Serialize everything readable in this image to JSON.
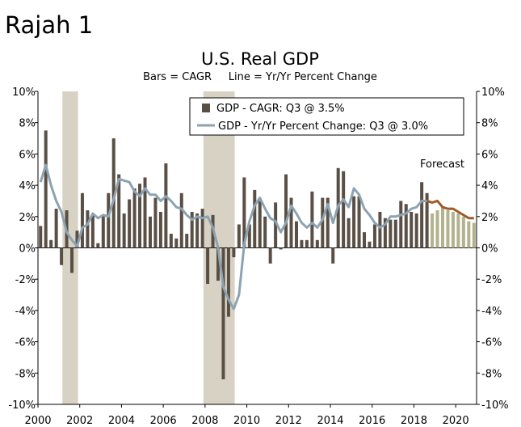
{
  "figure_label": "Rajah 1",
  "chart_data": {
    "type": "bar",
    "title": "U.S. Real GDP",
    "subtitle": "Bars = CAGR     Line = Yr/Yr Percent Change",
    "x_ticks": [
      "2000",
      "2002",
      "2004",
      "2006",
      "2008",
      "2010",
      "2012",
      "2014",
      "2016",
      "2018",
      "2020"
    ],
    "y_ticks": [
      "10%",
      "8%",
      "6%",
      "4%",
      "2%",
      "0%",
      "-2%",
      "-4%",
      "-6%",
      "-8%",
      "-10%"
    ],
    "ylim": [
      -10,
      10
    ],
    "xlim": [
      2000,
      2021
    ],
    "legend_position": "top-right",
    "annotation": "Forecast",
    "recessions": [
      [
        2001.17,
        2001.92
      ],
      [
        2007.92,
        2009.42
      ]
    ],
    "colors": {
      "bars": "#5a4f45",
      "forecast_bars": "#b3b28e",
      "line": "#8da3b2",
      "forecast_line": "#9c5c2a",
      "recession": "#d8d2c4"
    },
    "series": [
      {
        "name": "GDP - CAGR: Q3 @ 3.5%",
        "kind": "bar",
        "x": [
          2000.0,
          2000.25,
          2000.5,
          2000.75,
          2001.0,
          2001.25,
          2001.5,
          2001.75,
          2002.0,
          2002.25,
          2002.5,
          2002.75,
          2003.0,
          2003.25,
          2003.5,
          2003.75,
          2004.0,
          2004.25,
          2004.5,
          2004.75,
          2005.0,
          2005.25,
          2005.5,
          2005.75,
          2006.0,
          2006.25,
          2006.5,
          2006.75,
          2007.0,
          2007.25,
          2007.5,
          2007.75,
          2008.0,
          2008.25,
          2008.5,
          2008.75,
          2009.0,
          2009.25,
          2009.5,
          2009.75,
          2010.0,
          2010.25,
          2010.5,
          2010.75,
          2011.0,
          2011.25,
          2011.5,
          2011.75,
          2012.0,
          2012.25,
          2012.5,
          2012.75,
          2013.0,
          2013.25,
          2013.5,
          2013.75,
          2014.0,
          2014.25,
          2014.5,
          2014.75,
          2015.0,
          2015.25,
          2015.5,
          2015.75,
          2016.0,
          2016.25,
          2016.5,
          2016.75,
          2017.0,
          2017.25,
          2017.5,
          2017.75,
          2018.0,
          2018.25,
          2018.5
        ],
        "values": [
          1.4,
          7.5,
          0.5,
          2.5,
          -1.1,
          2.4,
          -1.6,
          1.1,
          3.5,
          2.4,
          2.1,
          0.3,
          2.1,
          3.5,
          7.0,
          4.7,
          2.2,
          3.1,
          3.8,
          4.1,
          4.5,
          2.0,
          3.2,
          2.3,
          5.4,
          0.9,
          0.6,
          3.5,
          0.9,
          2.3,
          2.2,
          2.5,
          -2.3,
          2.1,
          -2.1,
          -8.4,
          -4.4,
          -0.6,
          1.5,
          4.5,
          1.5,
          3.7,
          3.0,
          2.0,
          -1.0,
          2.9,
          -0.1,
          4.7,
          3.2,
          1.7,
          0.5,
          0.5,
          3.6,
          0.5,
          3.2,
          3.2,
          -1.0,
          5.1,
          4.9,
          1.9,
          3.3,
          3.3,
          1.0,
          0.4,
          1.5,
          2.3,
          1.9,
          1.8,
          1.8,
          3.0,
          2.8,
          2.3,
          2.2,
          4.2,
          3.5
        ]
      },
      {
        "name": "GDP - Yr/Yr Percent Change: Q3 @ 3.0%",
        "kind": "line",
        "x": [
          2000.0,
          2000.25,
          2000.5,
          2000.75,
          2001.0,
          2001.25,
          2001.5,
          2001.75,
          2002.0,
          2002.25,
          2002.5,
          2002.75,
          2003.0,
          2003.25,
          2003.5,
          2003.75,
          2004.0,
          2004.25,
          2004.5,
          2004.75,
          2005.0,
          2005.25,
          2005.5,
          2005.75,
          2006.0,
          2006.25,
          2006.5,
          2006.75,
          2007.0,
          2007.25,
          2007.5,
          2007.75,
          2008.0,
          2008.25,
          2008.5,
          2008.75,
          2009.0,
          2009.25,
          2009.5,
          2009.75,
          2010.0,
          2010.25,
          2010.5,
          2010.75,
          2011.0,
          2011.25,
          2011.5,
          2011.75,
          2012.0,
          2012.25,
          2012.5,
          2012.75,
          2013.0,
          2013.25,
          2013.5,
          2013.75,
          2014.0,
          2014.25,
          2014.5,
          2014.75,
          2015.0,
          2015.25,
          2015.5,
          2015.75,
          2016.0,
          2016.25,
          2016.5,
          2016.75,
          2017.0,
          2017.25,
          2017.5,
          2017.75,
          2018.0,
          2018.25,
          2018.5
        ],
        "values": [
          4.2,
          5.3,
          4.0,
          3.0,
          2.3,
          1.0,
          0.5,
          0.1,
          1.3,
          1.5,
          2.2,
          1.9,
          2.1,
          2.0,
          3.1,
          4.4,
          4.3,
          4.2,
          3.6,
          3.3,
          3.8,
          3.4,
          3.4,
          3.0,
          3.3,
          3.0,
          2.6,
          2.5,
          2.1,
          1.8,
          2.0,
          1.9,
          2.0,
          1.3,
          0.0,
          -2.5,
          -3.3,
          -3.9,
          -3.0,
          0.2,
          1.7,
          2.7,
          3.2,
          2.5,
          1.9,
          1.7,
          1.0,
          1.6,
          2.7,
          2.2,
          1.6,
          1.3,
          1.6,
          1.3,
          1.8,
          2.8,
          1.6,
          2.7,
          3.1,
          2.6,
          3.8,
          3.4,
          2.5,
          2.1,
          1.6,
          1.3,
          1.5,
          2.0,
          2.0,
          2.1,
          2.2,
          2.5,
          2.6,
          3.0,
          3.0
        ]
      },
      {
        "kind": "bar",
        "forecast": true,
        "x": [
          2018.75,
          2019.0,
          2019.25,
          2019.5,
          2019.75,
          2020.0,
          2020.25,
          2020.5,
          2020.75
        ],
        "values": [
          2.2,
          2.4,
          2.6,
          2.4,
          2.3,
          2.2,
          2.0,
          1.7,
          1.6
        ]
      },
      {
        "kind": "line",
        "forecast": true,
        "x": [
          2018.5,
          2018.75,
          2019.0,
          2019.25,
          2019.5,
          2019.75,
          2020.0,
          2020.25,
          2020.5,
          2020.75
        ],
        "values": [
          3.0,
          2.9,
          3.0,
          2.6,
          2.5,
          2.5,
          2.3,
          2.1,
          1.9,
          1.9
        ]
      }
    ]
  }
}
